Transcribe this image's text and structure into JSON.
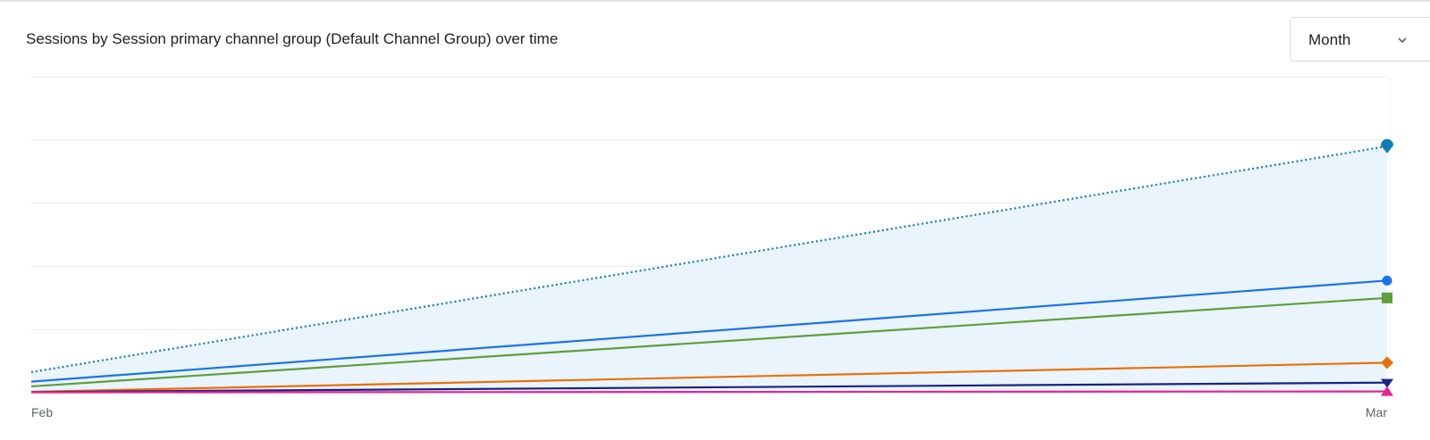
{
  "card": {
    "title": "Sessions by Session primary channel group (Default Channel Group) over time"
  },
  "period_select": {
    "value": "Month",
    "icon": "chevron-down-icon"
  },
  "chart_data": {
    "type": "line",
    "title": "Sessions by Session primary channel group (Default Channel Group) over time",
    "x": [
      "Feb",
      "Mar"
    ],
    "xlabel": "",
    "ylabel": "",
    "ylim": [
      0,
      100
    ],
    "grid": true,
    "legend": "none",
    "series": [
      {
        "values": [
          6.5,
          78
        ],
        "color": "#0b7fb3",
        "style": "dotted-area",
        "marker": "pin",
        "fill": "#eaf4fd"
      },
      {
        "values": [
          3.5,
          35.5
        ],
        "color": "#1a73e8",
        "style": "solid",
        "marker": "circle"
      },
      {
        "values": [
          2,
          30
        ],
        "color": "#5f9e3a",
        "style": "solid",
        "marker": "square"
      },
      {
        "values": [
          0.3,
          9.5
        ],
        "color": "#e8710a",
        "style": "solid",
        "marker": "diamond"
      },
      {
        "values": [
          0.2,
          3.2
        ],
        "color": "#1a237e",
        "style": "solid",
        "marker": "triangle-down"
      },
      {
        "values": [
          0.1,
          0.4
        ],
        "color": "#e52592",
        "style": "solid",
        "marker": "triangle-up"
      }
    ]
  }
}
